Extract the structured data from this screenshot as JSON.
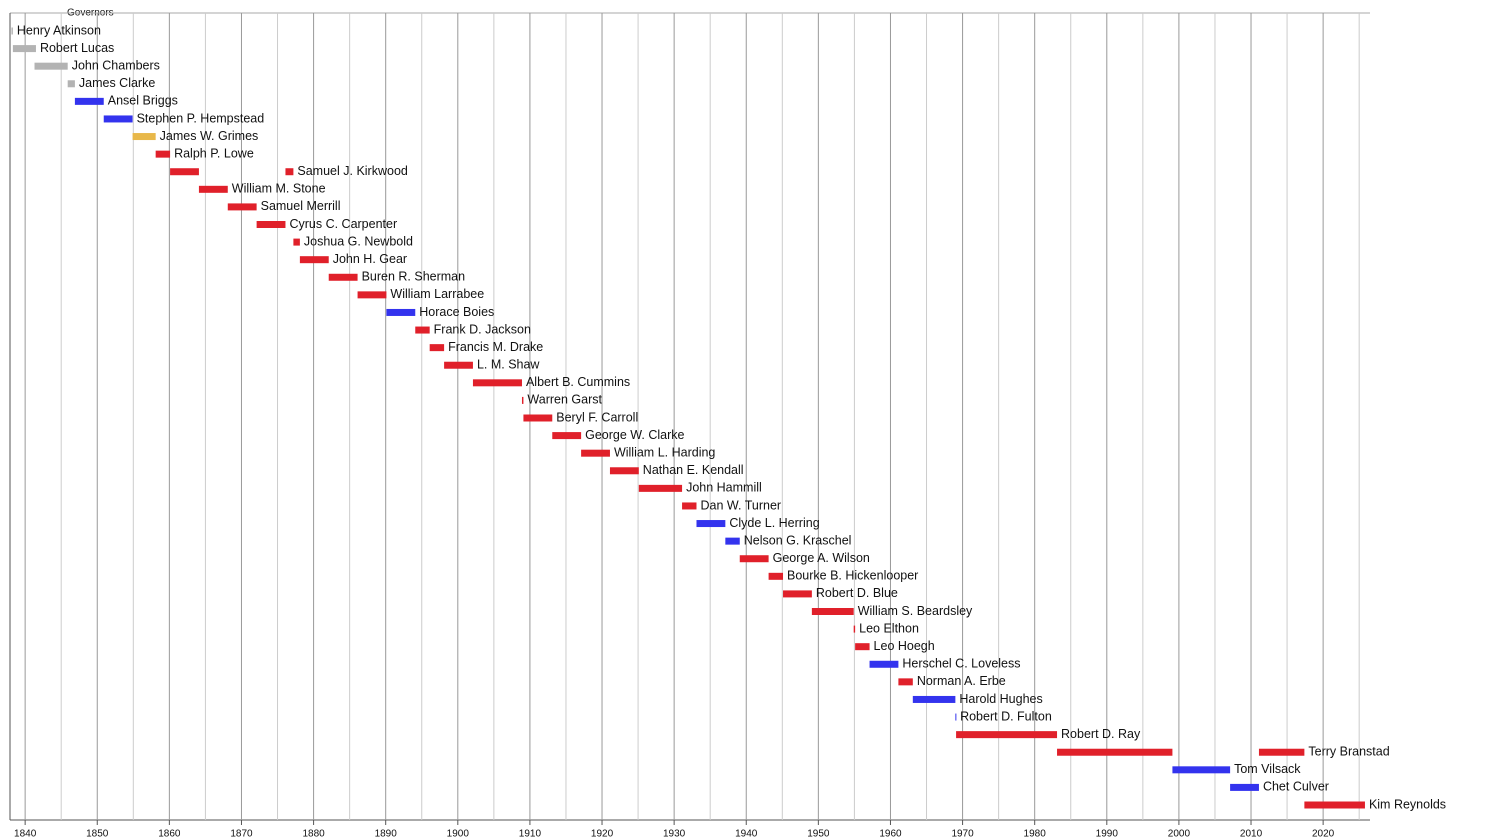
{
  "chart_data": {
    "type": "timeline",
    "title": "Governors",
    "xlim": [
      1837.9,
      2026.5
    ],
    "xticks": [
      1840,
      1850,
      1860,
      1870,
      1880,
      1890,
      1900,
      1910,
      1920,
      1930,
      1940,
      1950,
      1960,
      1970,
      1980,
      1990,
      2000,
      2010,
      2020
    ],
    "xminor": [
      1845,
      1855,
      1865,
      1875,
      1885,
      1895,
      1905,
      1915,
      1925,
      1935,
      1945,
      1955,
      1965,
      1975,
      1985,
      1995,
      2005,
      2015,
      2025
    ],
    "grid": true,
    "rows": [
      {
        "name": "Henry Atkinson",
        "color": "#b3b3b3",
        "terms": [
          [
            1838.1,
            1838.3
          ]
        ]
      },
      {
        "name": "Robert Lucas",
        "color": "#b3b3b3",
        "terms": [
          [
            1838.3,
            1841.5
          ]
        ]
      },
      {
        "name": "John Chambers",
        "color": "#b3b3b3",
        "terms": [
          [
            1841.3,
            1845.9
          ]
        ]
      },
      {
        "name": "James Clarke",
        "color": "#b3b3b3",
        "terms": [
          [
            1845.9,
            1846.9
          ]
        ]
      },
      {
        "name": "Ansel Briggs",
        "color": "#3333ee",
        "terms": [
          [
            1846.9,
            1850.9
          ]
        ]
      },
      {
        "name": "Stephen P. Hempstead",
        "color": "#3333ee",
        "terms": [
          [
            1850.9,
            1854.9
          ]
        ]
      },
      {
        "name": "James W. Grimes",
        "color": "#e8b84a",
        "terms": [
          [
            1854.9,
            1858.1
          ]
        ]
      },
      {
        "name": "Ralph P. Lowe",
        "color": "#e0202a",
        "terms": [
          [
            1858.1,
            1860.1
          ]
        ]
      },
      {
        "name": "Samuel J. Kirkwood",
        "color": "#e0202a",
        "terms": [
          [
            1860.1,
            1864.1
          ],
          [
            1876.1,
            1877.2
          ]
        ]
      },
      {
        "name": "William M. Stone",
        "color": "#e0202a",
        "terms": [
          [
            1864.1,
            1868.1
          ]
        ]
      },
      {
        "name": "Samuel Merrill",
        "color": "#e0202a",
        "terms": [
          [
            1868.1,
            1872.1
          ]
        ]
      },
      {
        "name": "Cyrus C. Carpenter",
        "color": "#e0202a",
        "terms": [
          [
            1872.1,
            1876.1
          ]
        ]
      },
      {
        "name": "Joshua G. Newbold",
        "color": "#e0202a",
        "terms": [
          [
            1877.2,
            1878.1
          ]
        ]
      },
      {
        "name": "John H. Gear",
        "color": "#e0202a",
        "terms": [
          [
            1878.1,
            1882.1
          ]
        ]
      },
      {
        "name": "Buren R. Sherman",
        "color": "#e0202a",
        "terms": [
          [
            1882.1,
            1886.1
          ]
        ]
      },
      {
        "name": "William Larrabee",
        "color": "#e0202a",
        "terms": [
          [
            1886.1,
            1890.1
          ]
        ]
      },
      {
        "name": "Horace Boies",
        "color": "#3333ee",
        "terms": [
          [
            1890.1,
            1894.1
          ]
        ]
      },
      {
        "name": "Frank D. Jackson",
        "color": "#e0202a",
        "terms": [
          [
            1894.1,
            1896.1
          ]
        ]
      },
      {
        "name": "Francis M. Drake",
        "color": "#e0202a",
        "terms": [
          [
            1896.1,
            1898.1
          ]
        ]
      },
      {
        "name": "L. M. Shaw",
        "color": "#e0202a",
        "terms": [
          [
            1898.1,
            1902.1
          ]
        ]
      },
      {
        "name": "Albert B. Cummins",
        "color": "#e0202a",
        "terms": [
          [
            1902.1,
            1908.9
          ]
        ]
      },
      {
        "name": "Warren Garst",
        "color": "#e0202a",
        "terms": [
          [
            1908.9,
            1909.1
          ]
        ]
      },
      {
        "name": "Beryl F. Carroll",
        "color": "#e0202a",
        "terms": [
          [
            1909.1,
            1913.1
          ]
        ]
      },
      {
        "name": "George W. Clarke",
        "color": "#e0202a",
        "terms": [
          [
            1913.1,
            1917.1
          ]
        ]
      },
      {
        "name": "William L. Harding",
        "color": "#e0202a",
        "terms": [
          [
            1917.1,
            1921.1
          ]
        ]
      },
      {
        "name": "Nathan E. Kendall",
        "color": "#e0202a",
        "terms": [
          [
            1921.1,
            1925.1
          ]
        ]
      },
      {
        "name": "John Hammill",
        "color": "#e0202a",
        "terms": [
          [
            1925.1,
            1931.1
          ]
        ]
      },
      {
        "name": "Dan W. Turner",
        "color": "#e0202a",
        "terms": [
          [
            1931.1,
            1933.1
          ]
        ]
      },
      {
        "name": "Clyde L. Herring",
        "color": "#3333ee",
        "terms": [
          [
            1933.1,
            1937.1
          ]
        ]
      },
      {
        "name": "Nelson G. Kraschel",
        "color": "#3333ee",
        "terms": [
          [
            1937.1,
            1939.1
          ]
        ]
      },
      {
        "name": "George A. Wilson",
        "color": "#e0202a",
        "terms": [
          [
            1939.1,
            1943.1
          ]
        ]
      },
      {
        "name": "Bourke B. Hickenlooper",
        "color": "#e0202a",
        "terms": [
          [
            1943.1,
            1945.1
          ]
        ]
      },
      {
        "name": "Robert D. Blue",
        "color": "#e0202a",
        "terms": [
          [
            1945.1,
            1949.1
          ]
        ]
      },
      {
        "name": "William S. Beardsley",
        "color": "#e0202a",
        "terms": [
          [
            1949.1,
            1954.9
          ]
        ]
      },
      {
        "name": "Leo Elthon",
        "color": "#e0202a",
        "terms": [
          [
            1954.9,
            1955.1
          ]
        ]
      },
      {
        "name": "Leo Hoegh",
        "color": "#e0202a",
        "terms": [
          [
            1955.1,
            1957.1
          ]
        ]
      },
      {
        "name": "Herschel C. Loveless",
        "color": "#3333ee",
        "terms": [
          [
            1957.1,
            1961.1
          ]
        ]
      },
      {
        "name": "Norman A. Erbe",
        "color": "#e0202a",
        "terms": [
          [
            1961.1,
            1963.1
          ]
        ]
      },
      {
        "name": "Harold Hughes",
        "color": "#3333ee",
        "terms": [
          [
            1963.1,
            1969.0
          ]
        ]
      },
      {
        "name": "Robert D. Fulton",
        "color": "#3333ee",
        "terms": [
          [
            1969.0,
            1969.1
          ]
        ]
      },
      {
        "name": "Robert D. Ray",
        "color": "#e0202a",
        "terms": [
          [
            1969.1,
            1983.1
          ]
        ]
      },
      {
        "name": "Terry Branstad",
        "color": "#e0202a",
        "terms": [
          [
            1983.1,
            1999.1
          ],
          [
            2011.1,
            2017.4
          ]
        ]
      },
      {
        "name": "Tom Vilsack",
        "color": "#3333ee",
        "terms": [
          [
            1999.1,
            2007.1
          ]
        ]
      },
      {
        "name": "Chet Culver",
        "color": "#3333ee",
        "terms": [
          [
            2007.1,
            2011.1
          ]
        ]
      },
      {
        "name": "Kim Reynolds",
        "color": "#e0202a",
        "terms": [
          [
            2017.4,
            2025.8
          ]
        ]
      }
    ]
  }
}
